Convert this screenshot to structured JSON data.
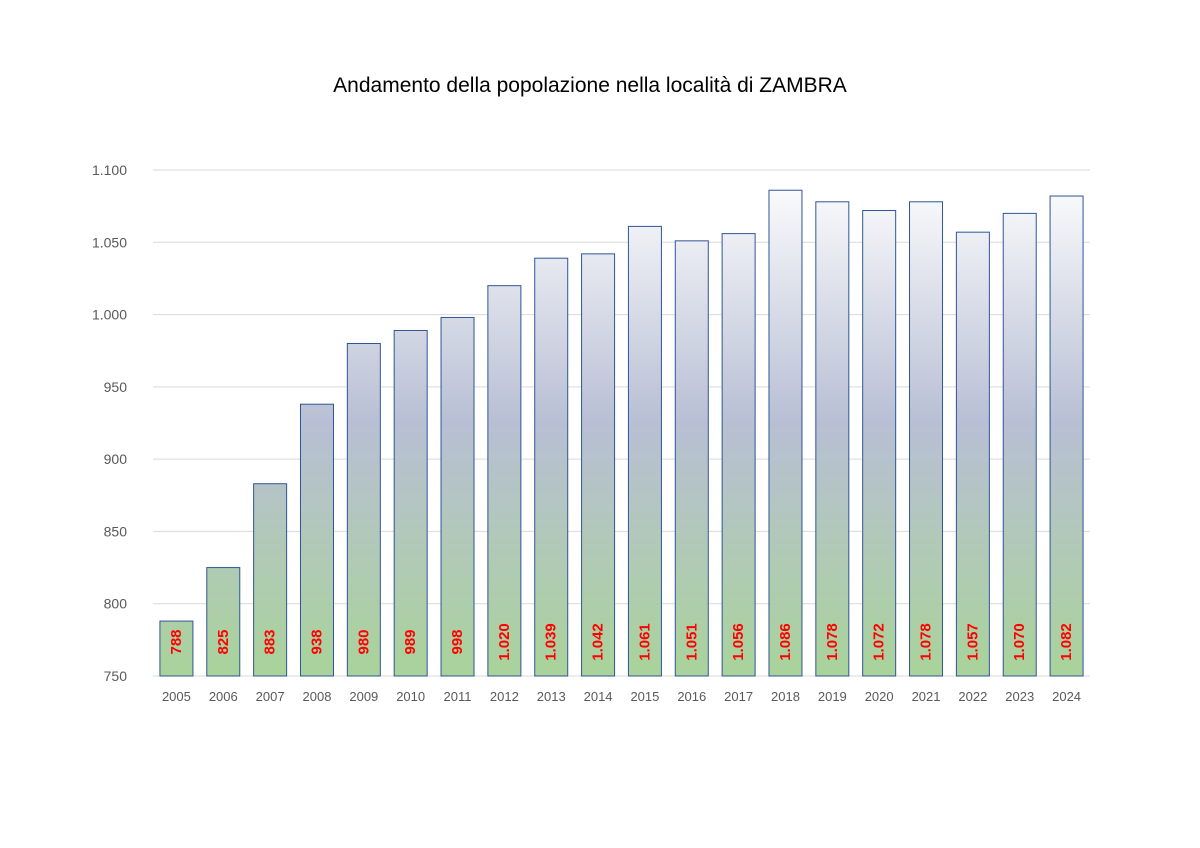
{
  "chart_data": {
    "type": "bar",
    "title": "Andamento della popolazione nella località di ZAMBRA",
    "xlabel": "",
    "ylabel": "",
    "categories": [
      "2005",
      "2006",
      "2007",
      "2008",
      "2009",
      "2010",
      "2011",
      "2012",
      "2013",
      "2014",
      "2015",
      "2016",
      "2017",
      "2018",
      "2019",
      "2020",
      "2021",
      "2022",
      "2023",
      "2024"
    ],
    "values": [
      788,
      825,
      883,
      938,
      980,
      989,
      998,
      1020,
      1039,
      1042,
      1061,
      1051,
      1056,
      1086,
      1078,
      1072,
      1078,
      1057,
      1070,
      1082
    ],
    "data_labels": [
      "788",
      "825",
      "883",
      "938",
      "980",
      "989",
      "998",
      "1.020",
      "1.039",
      "1.042",
      "1.061",
      "1.051",
      "1.056",
      "1.086",
      "1.078",
      "1.072",
      "1.078",
      "1.057",
      "1.070",
      "1.082"
    ],
    "ylim": [
      750,
      1100
    ],
    "yticks": [
      750,
      800,
      850,
      900,
      950,
      1000,
      1050,
      1100
    ],
    "ytick_labels": [
      "750",
      "800",
      "850",
      "900",
      "950",
      "1.000",
      "1.050",
      "1.100"
    ],
    "grid": true,
    "legend": "none",
    "colors": {
      "bar_top": "#ffffff",
      "bar_mid": "#b8bfd4",
      "bar_bottom": "#a9d39a",
      "bar_border": "#2f5597",
      "data_label": "#ff0000",
      "gridline": "#d9d9d9",
      "axis_text": "#595959"
    }
  }
}
